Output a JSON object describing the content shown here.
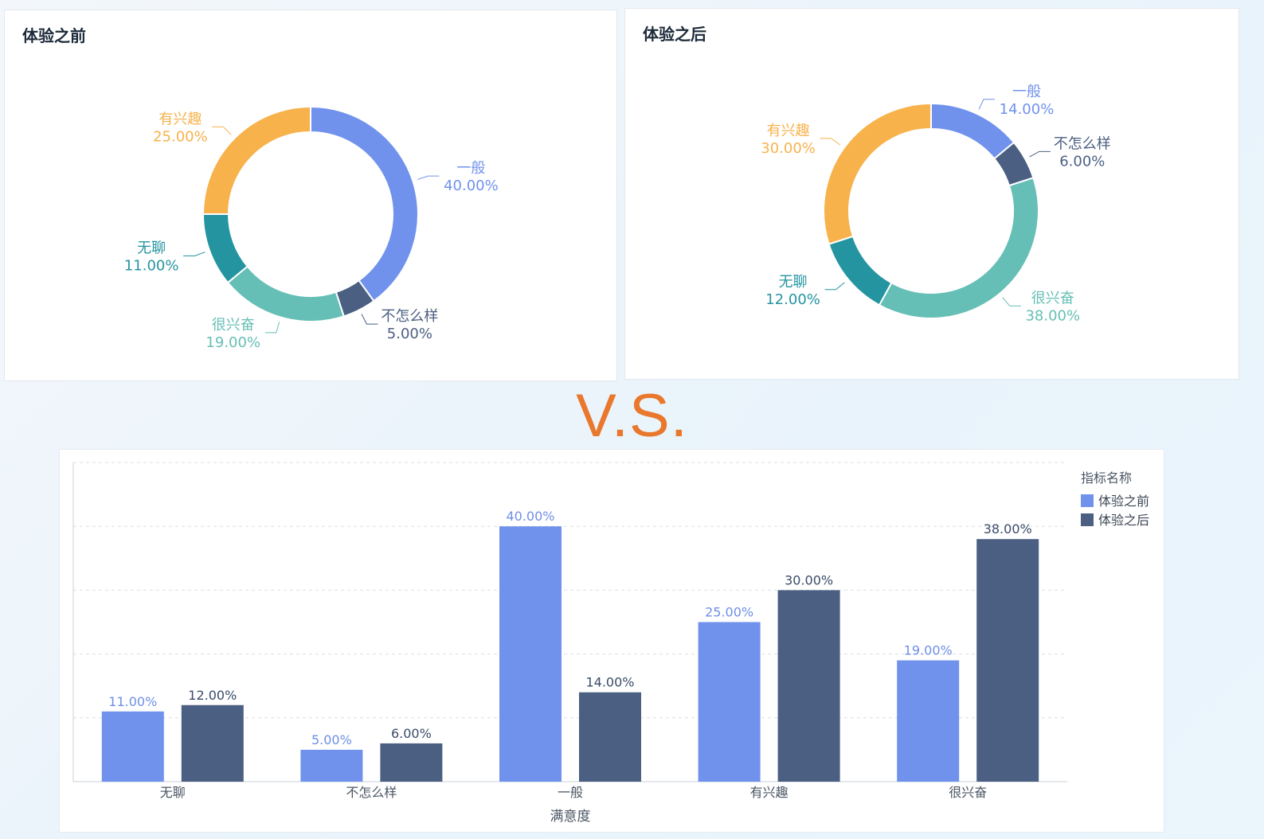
{
  "vs_text": "V.S.",
  "colors": {
    "一般": "#7092ec",
    "不怎么样": "#4b5f82",
    "很兴奋": "#66bfb6",
    "无聊": "#2494a0",
    "有兴趣": "#f7b24c",
    "before_bar": "#7092ec",
    "after_bar": "#4b5f82"
  },
  "chart_data": [
    {
      "type": "pie",
      "title": "体验之前",
      "donut": true,
      "slices": [
        {
          "label": "一般",
          "value": 40.0,
          "display": "40.00%"
        },
        {
          "label": "不怎么样",
          "value": 5.0,
          "display": "5.00%"
        },
        {
          "label": "很兴奋",
          "value": 19.0,
          "display": "19.00%"
        },
        {
          "label": "无聊",
          "value": 11.0,
          "display": "11.00%"
        },
        {
          "label": "有兴趣",
          "value": 25.0,
          "display": "25.00%"
        }
      ]
    },
    {
      "type": "pie",
      "title": "体验之后",
      "donut": true,
      "slices": [
        {
          "label": "一般",
          "value": 14.0,
          "display": "14.00%"
        },
        {
          "label": "不怎么样",
          "value": 6.0,
          "display": "6.00%"
        },
        {
          "label": "很兴奋",
          "value": 38.0,
          "display": "38.00%"
        },
        {
          "label": "无聊",
          "value": 12.0,
          "display": "12.00%"
        },
        {
          "label": "有兴趣",
          "value": 30.0,
          "display": "30.00%"
        }
      ]
    },
    {
      "type": "bar",
      "categories": [
        "无聊",
        "不怎么样",
        "一般",
        "有兴趣",
        "很兴奋"
      ],
      "series": [
        {
          "name": "体验之前",
          "values": [
            11.0,
            5.0,
            40.0,
            25.0,
            19.0
          ]
        },
        {
          "name": "体验之后",
          "values": [
            12.0,
            6.0,
            14.0,
            30.0,
            38.0
          ]
        }
      ],
      "xlabel": "满意度",
      "ylabel": "",
      "ylim": [
        0,
        50
      ],
      "grid": true,
      "legend_title": "指标名称",
      "legend_position": "top-right",
      "value_format": "percent-2"
    }
  ]
}
